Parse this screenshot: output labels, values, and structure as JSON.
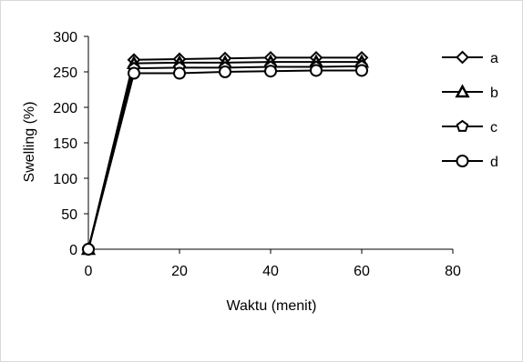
{
  "chart_data": {
    "type": "line",
    "title": "",
    "xlabel": "Waktu (menit)",
    "ylabel": "Swelling (%)",
    "xlim": [
      0,
      80
    ],
    "ylim": [
      0,
      300
    ],
    "xticks": [
      0,
      20,
      40,
      60,
      80
    ],
    "yticks": [
      0,
      50,
      100,
      150,
      200,
      250,
      300
    ],
    "grid": false,
    "legend_position": "right",
    "x": [
      0,
      10,
      20,
      30,
      40,
      50,
      60
    ],
    "series": [
      {
        "name": "a",
        "marker": "diamond",
        "values": [
          0,
          267,
          268,
          269,
          270,
          270,
          270
        ]
      },
      {
        "name": "b",
        "marker": "triangle",
        "values": [
          0,
          262,
          263,
          263,
          264,
          264,
          264
        ]
      },
      {
        "name": "c",
        "marker": "pentagon",
        "values": [
          0,
          255,
          256,
          256,
          257,
          257,
          258
        ]
      },
      {
        "name": "d",
        "marker": "circle",
        "values": [
          0,
          248,
          248,
          250,
          251,
          252,
          252
        ]
      }
    ],
    "colors": {
      "line": "#000000",
      "marker_fill": "#ffffff",
      "axis": "#000000"
    }
  }
}
